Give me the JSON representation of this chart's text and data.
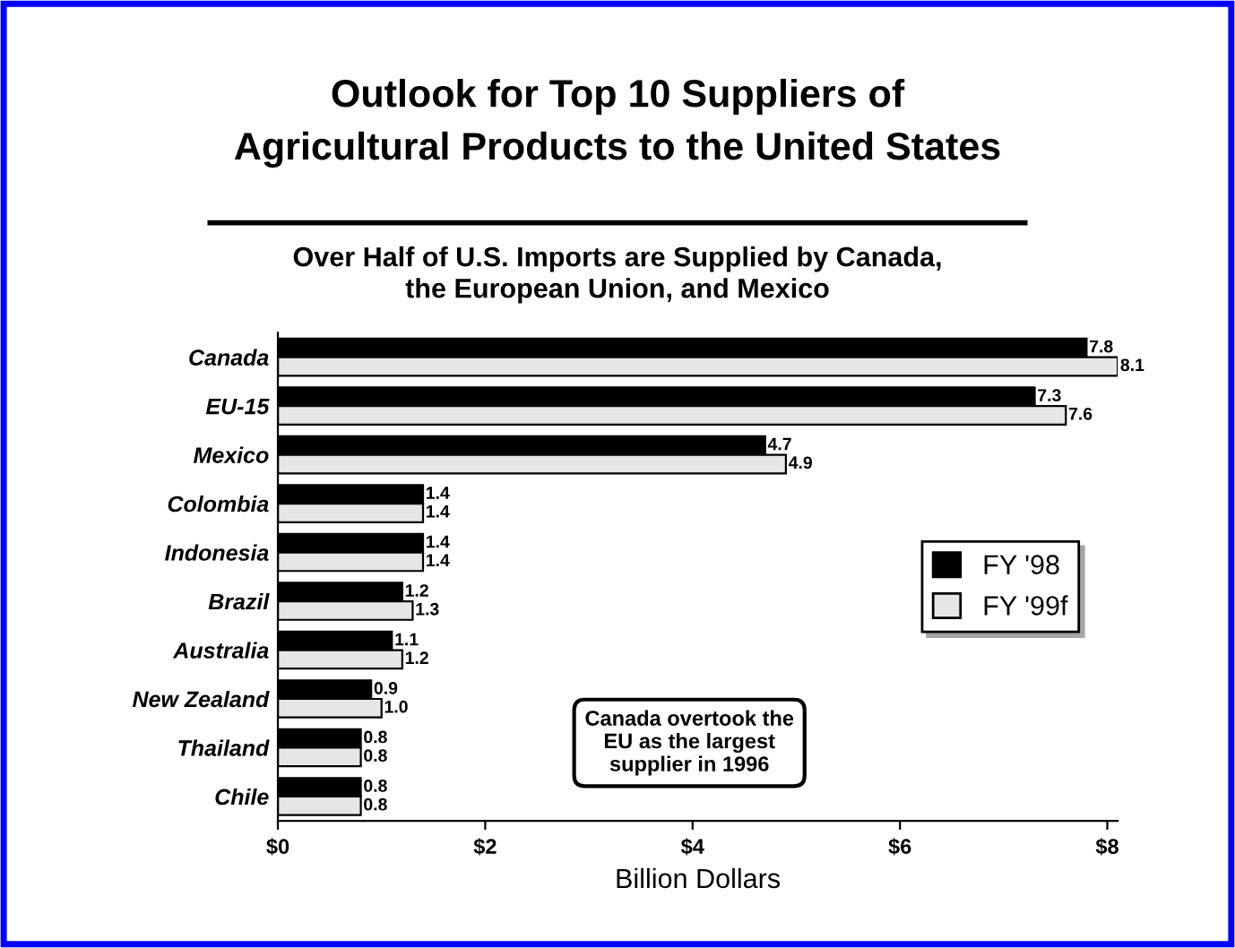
{
  "chart_data": {
    "type": "bar",
    "orientation": "horizontal",
    "title": "Outlook for Top 10 Suppliers of\nAgricultural Products to the United States",
    "subtitle": "Over Half of U.S. Imports are Supplied by Canada,\nthe European Union, and Mexico",
    "xlabel": "Billion Dollars",
    "categories": [
      "Canada",
      "EU-15",
      "Mexico",
      "Colombia",
      "Indonesia",
      "Brazil",
      "Australia",
      "New Zealand",
      "Thailand",
      "Chile"
    ],
    "series": [
      {
        "name": "FY '98",
        "color": "#000000",
        "values": [
          7.8,
          7.3,
          4.7,
          1.4,
          1.4,
          1.2,
          1.1,
          0.9,
          0.8,
          0.8
        ],
        "value_labels": [
          "7.8",
          "7.3",
          "4.7",
          "1.4",
          "1.4",
          "1.2",
          "1.1",
          "0.9",
          "0.8",
          "0.8"
        ]
      },
      {
        "name": "FY '99f",
        "color": "#e6e6e6",
        "values": [
          8.1,
          7.6,
          4.9,
          1.4,
          1.4,
          1.3,
          1.2,
          1.0,
          0.8,
          0.8
        ],
        "value_labels": [
          "8.1",
          "7.6",
          "4.9",
          "1.4",
          "1.4",
          "1.3",
          "1.2",
          "1.0",
          "0.8",
          "0.8"
        ]
      }
    ],
    "xlim": [
      0,
      8.1
    ],
    "xticks": [
      {
        "value": 0,
        "label": "$0"
      },
      {
        "value": 2,
        "label": "$2"
      },
      {
        "value": 4,
        "label": "$4"
      },
      {
        "value": 6,
        "label": "$6"
      },
      {
        "value": 8,
        "label": "$8"
      }
    ],
    "legend": "right",
    "grid": false,
    "annotations": [
      "Canada overtook the\nEU as the largest\nsupplier in 1996"
    ]
  }
}
